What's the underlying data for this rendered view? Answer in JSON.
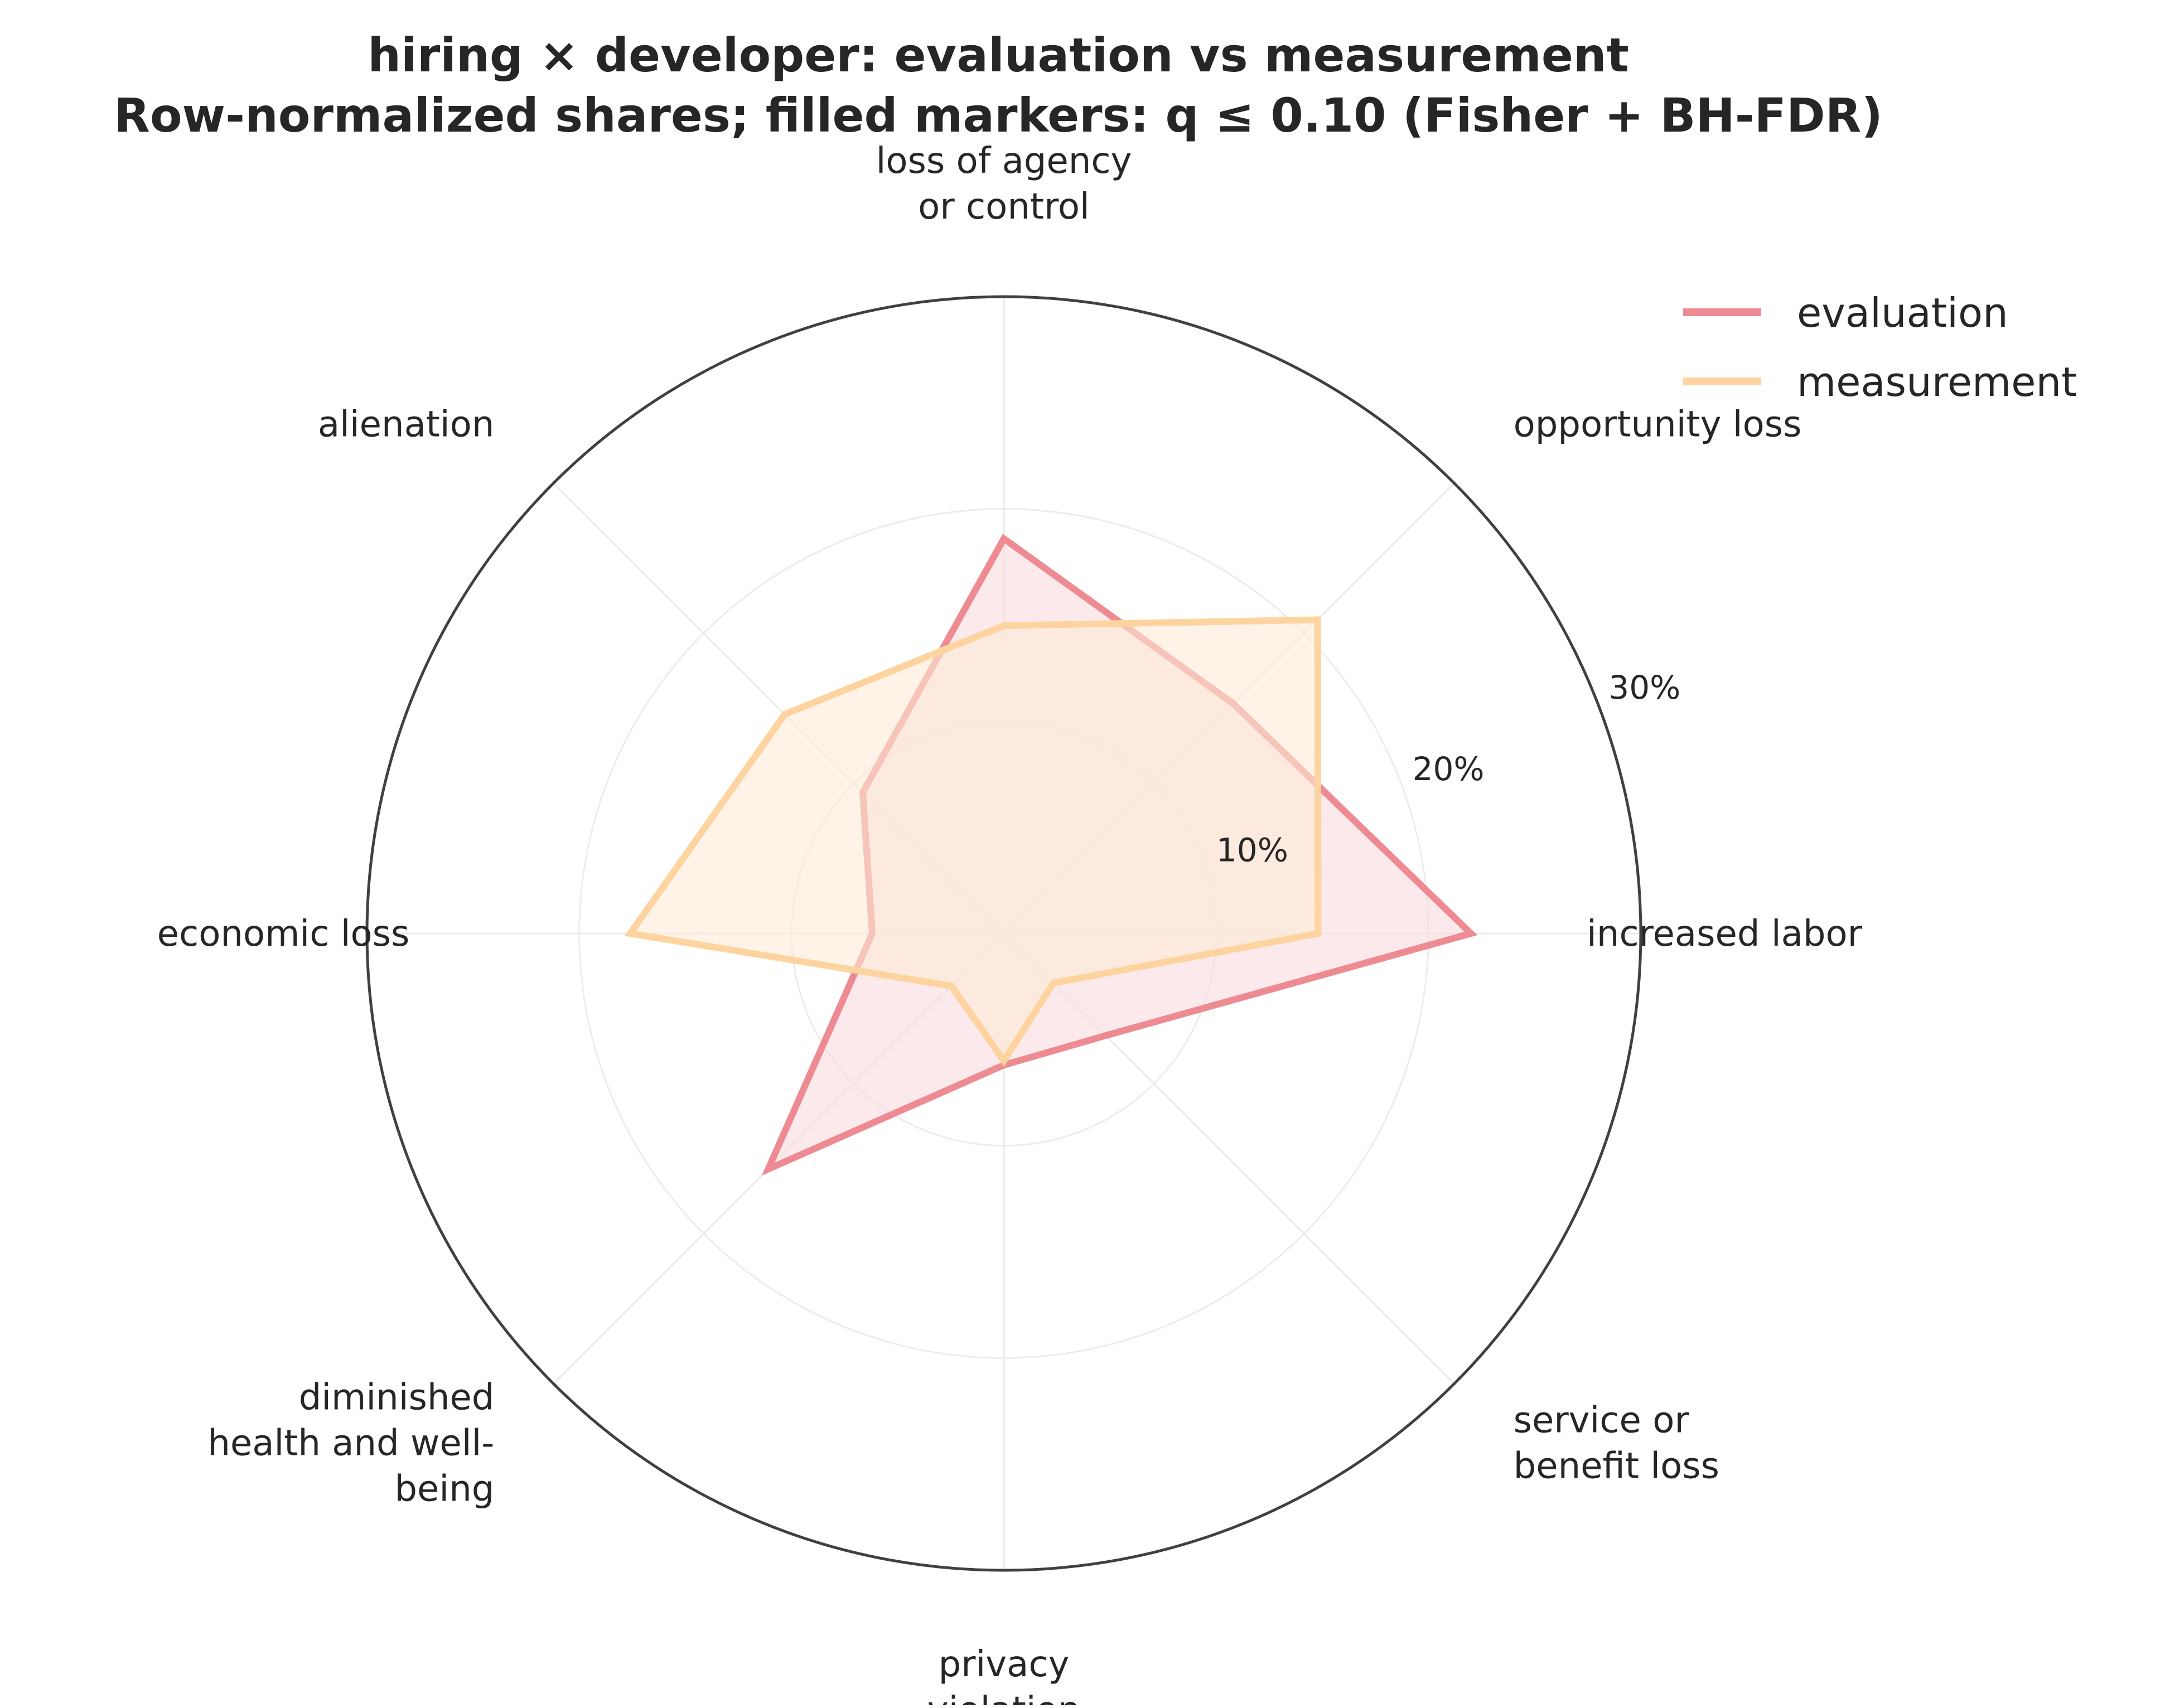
{
  "chart_data": {
    "type": "radar",
    "title": "hiring × developer: evaluation vs measurement",
    "subtitle": "Row-normalized shares; filled markers: q ≤ 0.10 (Fisher + BH-FDR)",
    "categories": [
      "increased labor",
      "opportunity loss",
      "loss of agency\nor control",
      "alienation",
      "economic loss",
      "diminished\nhealth and well-\nbeing",
      "privacy\nviolation",
      "service or\nbenefit loss"
    ],
    "series": [
      {
        "name": "evaluation",
        "values": [
          22.0,
          15.3,
          18.6,
          9.4,
          6.2,
          15.7,
          6.2,
          6.8
        ],
        "color": "#ee8b92",
        "fill": "#fadadd"
      },
      {
        "name": "measurement",
        "values": [
          14.8,
          20.9,
          14.5,
          14.6,
          17.6,
          3.5,
          6.0,
          3.3
        ],
        "color": "#fdd49f",
        "fill": "#fdebd6"
      }
    ],
    "radial_ticks": [
      10,
      20,
      30
    ],
    "radial_tick_labels": [
      "10%",
      "20%",
      "30%"
    ],
    "rmax": 30,
    "grid": true,
    "legend_position": "top-right"
  }
}
